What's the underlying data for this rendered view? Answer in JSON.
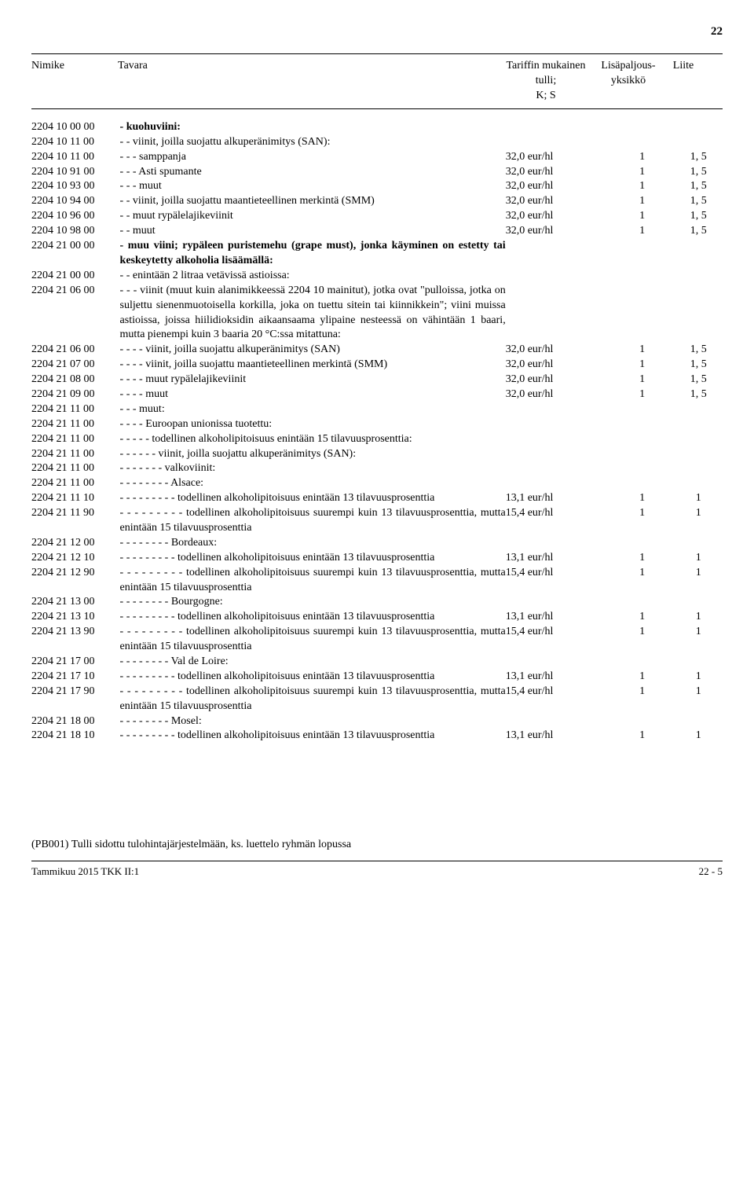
{
  "page_number_top": "22",
  "header": {
    "code": "Nimike",
    "desc": "Tavara",
    "tariff_line1": "Tariffin mukainen tulli;",
    "tariff_line2": "K; S",
    "unit_line1": "Lisäpaljous-",
    "unit_line2": "yksikkö",
    "annex": "Liite"
  },
  "rows": [
    {
      "code": "2204 10 00 00",
      "desc": "- kuohuviini:",
      "bold": true
    },
    {
      "code": "2204 10 11 00",
      "desc": "- - viinit, joilla suojattu alkuperänimitys (SAN):"
    },
    {
      "code": "2204 10 11 00",
      "desc": "- - - samppanja",
      "tariff": "32,0 eur/hl",
      "unit": "1",
      "annex": "1, 5"
    },
    {
      "code": "2204 10 91 00",
      "desc": "- - - Asti spumante",
      "tariff": "32,0 eur/hl",
      "unit": "1",
      "annex": "1, 5"
    },
    {
      "code": "2204 10 93 00",
      "desc": "- - - muut",
      "tariff": "32,0 eur/hl",
      "unit": "1",
      "annex": "1, 5"
    },
    {
      "code": "2204 10 94 00",
      "desc": "- - viinit, joilla suojattu maantieteellinen merkintä (SMM)",
      "tariff": "32,0 eur/hl",
      "unit": "1",
      "annex": "1, 5"
    },
    {
      "code": "2204 10 96 00",
      "desc": "- - muut rypälelajikeviinit",
      "tariff": "32,0 eur/hl",
      "unit": "1",
      "annex": "1, 5"
    },
    {
      "code": "2204 10 98 00",
      "desc": "- - muut",
      "tariff": "32,0 eur/hl",
      "unit": "1",
      "annex": "1, 5"
    },
    {
      "code": "2204 21 00 00",
      "desc": "- muu viini; rypäleen puristemehu (grape must), jonka käyminen on estetty tai keskeytetty alkoholia lisäämällä:",
      "bold": true
    },
    {
      "code": "2204 21 00 00",
      "desc": "- - enintään 2 litraa vetävissä astioissa:"
    },
    {
      "code": "2204 21 06 00",
      "desc": "- - - viinit (muut kuin alanimikkeessä 2204 10 mainitut), jotka ovat \"pulloissa, jotka on suljettu sienenmuotoisella korkilla, joka on tuettu sitein tai kiinnikkein\"; viini muissa astioissa, joissa hiilidioksidin aikaansaama ylipaine nesteessä on vähintään 1 baari, mutta pienempi kuin 3 baaria 20 °C:ssa mitattuna:"
    },
    {
      "code": "2204 21 06 00",
      "desc": "- - - - viinit, joilla suojattu alkuperänimitys (SAN)",
      "tariff": "32,0 eur/hl",
      "unit": "1",
      "annex": "1, 5"
    },
    {
      "code": "2204 21 07 00",
      "desc": "- - - - viinit, joilla suojattu maantieteellinen merkintä (SMM)",
      "tariff": "32,0 eur/hl",
      "unit": "1",
      "annex": "1, 5"
    },
    {
      "code": "2204 21 08 00",
      "desc": "- - - - muut rypälelajikeviinit",
      "tariff": "32,0 eur/hl",
      "unit": "1",
      "annex": "1, 5"
    },
    {
      "code": "2204 21 09 00",
      "desc": "- - - - muut",
      "tariff": "32,0 eur/hl",
      "unit": "1",
      "annex": "1, 5"
    },
    {
      "code": "2204 21 11 00",
      "desc": "- - - muut:"
    },
    {
      "code": "2204 21 11 00",
      "desc": "- - - - Euroopan unionissa tuotettu:"
    },
    {
      "code": "2204 21 11 00",
      "desc": "- - - - - todellinen alkoholipitoisuus enintään 15 tilavuusprosenttia:"
    },
    {
      "code": "2204 21 11 00",
      "desc": "- - - - - - viinit, joilla suojattu alkuperänimitys (SAN):"
    },
    {
      "code": "2204 21 11 00",
      "desc": "- - - - - - - valkoviinit:"
    },
    {
      "code": "2204 21 11 00",
      "desc": "- - - - - - - - Alsace:"
    },
    {
      "code": "2204 21 11 10",
      "desc": "- - - - - - - - - todellinen alkoholipitoisuus enintään 13 tilavuusprosenttia",
      "tariff": "13,1 eur/hl",
      "unit": "1",
      "annex": "1"
    },
    {
      "code": "2204 21 11 90",
      "desc": "- - - - - - - - - todellinen alkoholipitoisuus suurempi kuin 13 tilavuusprosenttia, mutta enintään 15 tilavuusprosenttia",
      "tariff": "15,4 eur/hl",
      "unit": "1",
      "annex": "1"
    },
    {
      "code": "2204 21 12 00",
      "desc": "- - - - - - - - Bordeaux:"
    },
    {
      "code": "2204 21 12 10",
      "desc": "- - - - - - - - - todellinen alkoholipitoisuus enintään 13 tilavuusprosenttia",
      "tariff": "13,1 eur/hl",
      "unit": "1",
      "annex": "1"
    },
    {
      "code": "2204 21 12 90",
      "desc": "- - - - - - - - - todellinen alkoholipitoisuus suurempi kuin 13 tilavuusprosenttia, mutta enintään 15 tilavuusprosenttia",
      "tariff": "15,4 eur/hl",
      "unit": "1",
      "annex": "1"
    },
    {
      "code": "2204 21 13 00",
      "desc": "- - - - - - - - Bourgogne:"
    },
    {
      "code": "2204 21 13 10",
      "desc": "- - - - - - - - - todellinen alkoholipitoisuus enintään 13 tilavuusprosenttia",
      "tariff": "13,1 eur/hl",
      "unit": "1",
      "annex": "1"
    },
    {
      "code": "2204 21 13 90",
      "desc": "- - - - - - - - - todellinen alkoholipitoisuus suurempi kuin 13 tilavuusprosenttia, mutta enintään 15 tilavuusprosenttia",
      "tariff": "15,4 eur/hl",
      "unit": "1",
      "annex": "1"
    },
    {
      "code": "2204 21 17 00",
      "desc": "- - - - - - - - Val de Loire:"
    },
    {
      "code": "2204 21 17 10",
      "desc": "- - - - - - - - - todellinen alkoholipitoisuus enintään 13 tilavuusprosenttia",
      "tariff": "13,1 eur/hl",
      "unit": "1",
      "annex": "1"
    },
    {
      "code": "2204 21 17 90",
      "desc": "- - - - - - - - - todellinen alkoholipitoisuus suurempi kuin 13 tilavuusprosenttia, mutta enintään 15 tilavuusprosenttia",
      "tariff": "15,4 eur/hl",
      "unit": "1",
      "annex": "1"
    },
    {
      "code": "2204 21 18 00",
      "desc": "- - - - - - - - Mosel:"
    },
    {
      "code": "2204 21 18 10",
      "desc": "- - - - - - - - - todellinen alkoholipitoisuus enintään 13 tilavuusprosenttia",
      "tariff": "13,1 eur/hl",
      "unit": "1",
      "annex": "1"
    }
  ],
  "footnote": "(PB001)  Tulli sidottu tulohintajärjestelmään, ks. luettelo ryhmän lopussa",
  "bottom_left": "Tammikuu 2015 TKK II:1",
  "bottom_right": "22 - 5"
}
